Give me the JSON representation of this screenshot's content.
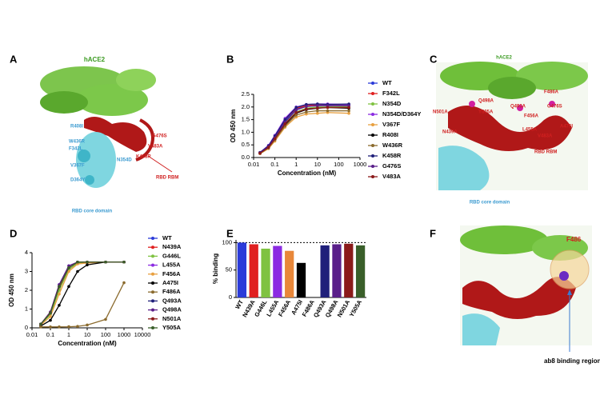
{
  "panels": [
    "A",
    "B",
    "C",
    "D",
    "E",
    "F"
  ],
  "structures": {
    "A": {
      "receptor": "hACE2",
      "rbm": "RBD RBM",
      "core": "RBD core domain",
      "residues": [
        "G476S",
        "V483A",
        "K458R",
        "R408I",
        "W436R",
        "F342L",
        "V367F",
        "D364Y",
        "N354D"
      ]
    },
    "C": {
      "receptor": "hACE2",
      "rbm": "RBD RBM",
      "core": "RBD core domain",
      "residues": [
        "F486A",
        "G476S",
        "A475I",
        "V483A",
        "N501A",
        "N439A",
        "Q498A",
        "Y505A",
        "Q493A",
        "F456A",
        "L455A"
      ]
    },
    "F": {
      "residue": "F486",
      "region": "ab8 binding region"
    }
  },
  "chart_data": [
    {
      "type": "line",
      "xlabel": "Concentration (nM)",
      "ylabel": "OD 450 nm",
      "xscale": "log",
      "xlim": [
        0.01,
        1000
      ],
      "xticks": [
        0.01,
        0.1,
        1,
        10,
        100,
        1000
      ],
      "ylim": [
        0,
        2.5
      ],
      "yticks": [
        {
          "value": 0,
          "label": "0.0"
        },
        0.5,
        {
          "value": 1,
          "label": "1.0"
        },
        1.5,
        {
          "value": 2,
          "label": "2.0"
        },
        2.5
      ],
      "x": [
        0.02,
        0.05,
        0.1,
        0.3,
        1,
        3,
        10,
        30,
        300
      ],
      "series": [
        {
          "name": "WT",
          "color": "#2b3bd9",
          "values": [
            0.18,
            0.42,
            0.8,
            1.45,
            1.9,
            2.05,
            2.08,
            2.08,
            2.08
          ]
        },
        {
          "name": "F342L",
          "color": "#e02020",
          "values": [
            0.2,
            0.45,
            0.85,
            1.5,
            1.95,
            2.05,
            2.1,
            2.1,
            2.1
          ]
        },
        {
          "name": "N354D",
          "color": "#7fc241",
          "values": [
            0.18,
            0.4,
            0.75,
            1.35,
            1.8,
            1.95,
            2.0,
            2.0,
            2.02
          ]
        },
        {
          "name": "N354D/D364Y",
          "color": "#8b2be2",
          "values": [
            0.2,
            0.48,
            0.88,
            1.55,
            2.0,
            2.1,
            2.12,
            2.12,
            2.1
          ]
        },
        {
          "name": "V367F",
          "color": "#e8a040",
          "values": [
            0.15,
            0.35,
            0.65,
            1.2,
            1.6,
            1.72,
            1.75,
            1.78,
            1.75
          ]
        },
        {
          "name": "R408I",
          "color": "#000000",
          "values": [
            0.17,
            0.4,
            0.72,
            1.3,
            1.75,
            1.9,
            1.95,
            1.98,
            1.95
          ]
        },
        {
          "name": "W436R",
          "color": "#8b6b2e",
          "values": [
            0.16,
            0.38,
            0.7,
            1.25,
            1.68,
            1.8,
            1.85,
            1.85,
            1.85
          ]
        },
        {
          "name": "K458R",
          "color": "#1f1f7a",
          "values": [
            0.2,
            0.46,
            0.85,
            1.5,
            1.98,
            2.1,
            2.12,
            2.1,
            2.12
          ]
        },
        {
          "name": "G476S",
          "color": "#5a1f8a",
          "values": [
            0.18,
            0.42,
            0.78,
            1.4,
            1.88,
            2.02,
            2.05,
            2.05,
            2.05
          ]
        },
        {
          "name": "V483A",
          "color": "#8b1a1a",
          "values": [
            0.17,
            0.4,
            0.74,
            1.33,
            1.78,
            1.92,
            1.96,
            1.98,
            1.98
          ]
        }
      ]
    },
    {
      "type": "line",
      "xlabel": "Concentration (nM)",
      "ylabel": "OD 450 nm",
      "xscale": "log",
      "xlim": [
        0.01,
        10000
      ],
      "xticks": [
        0.01,
        0.1,
        1,
        10,
        100,
        1000,
        10000
      ],
      "ylim": [
        0,
        4
      ],
      "yticks": [
        0,
        1,
        2,
        3,
        4
      ],
      "x": [
        0.03,
        0.1,
        0.3,
        1,
        3,
        10,
        100,
        1000
      ],
      "series": [
        {
          "name": "WT",
          "color": "#2b3bd9",
          "values": [
            0.2,
            0.8,
            2.2,
            3.2,
            3.5,
            3.5,
            3.5,
            3.5
          ]
        },
        {
          "name": "N439A",
          "color": "#e02020",
          "values": [
            0.2,
            0.75,
            2.1,
            3.1,
            3.45,
            3.5,
            3.5,
            3.5
          ]
        },
        {
          "name": "G446L",
          "color": "#7fc241",
          "values": [
            0.2,
            0.7,
            2.0,
            3.1,
            3.45,
            3.5,
            3.5,
            3.5
          ]
        },
        {
          "name": "L455A",
          "color": "#8b2be2",
          "values": [
            0.2,
            0.8,
            2.3,
            3.3,
            3.5,
            3.5,
            3.5,
            3.5
          ]
        },
        {
          "name": "F456A",
          "color": "#e8a040",
          "values": [
            0.15,
            0.6,
            1.8,
            3.0,
            3.4,
            3.45,
            3.5,
            3.5
          ]
        },
        {
          "name": "A475I",
          "color": "#000000",
          "values": [
            0.1,
            0.4,
            1.2,
            2.2,
            3.0,
            3.35,
            3.5,
            3.5
          ]
        },
        {
          "name": "F486A",
          "color": "#8b6b2e",
          "values": [
            0.05,
            0.05,
            0.05,
            0.06,
            0.08,
            0.15,
            0.45,
            2.4
          ]
        },
        {
          "name": "Q493A",
          "color": "#1f1f7a",
          "values": [
            0.2,
            0.8,
            2.2,
            3.2,
            3.5,
            3.5,
            3.5,
            3.5
          ]
        },
        {
          "name": "Q498A",
          "color": "#5a1f8a",
          "values": [
            0.2,
            0.85,
            2.3,
            3.3,
            3.5,
            3.5,
            3.5,
            3.5
          ]
        },
        {
          "name": "N501A",
          "color": "#8b1a1a",
          "values": [
            0.2,
            0.8,
            2.2,
            3.2,
            3.5,
            3.5,
            3.5,
            3.5
          ]
        },
        {
          "name": "Y505A",
          "color": "#3a5f2a",
          "values": [
            0.2,
            0.78,
            2.2,
            3.2,
            3.5,
            3.5,
            3.5,
            3.5
          ]
        }
      ]
    },
    {
      "type": "bar",
      "ylabel": "% binding",
      "ylim": [
        0,
        105
      ],
      "yticks": [
        0,
        50,
        100
      ],
      "reference_line": 100,
      "categories": [
        "WT",
        "N439A",
        "G446L",
        "L455A",
        "F456A",
        "A475I",
        "F486A",
        "Q493A",
        "Q498A",
        "N501A",
        "Y505A"
      ],
      "values": [
        100,
        97,
        89,
        94,
        85,
        63,
        0,
        95,
        97,
        98,
        95
      ],
      "colors": [
        "#2b3bd9",
        "#e02020",
        "#7fc241",
        "#8b2be2",
        "#e8873a",
        "#000000",
        "#8b6b2e",
        "#1f1f7a",
        "#5a1f8a",
        "#8b1a1a",
        "#3a5f2a"
      ]
    }
  ]
}
